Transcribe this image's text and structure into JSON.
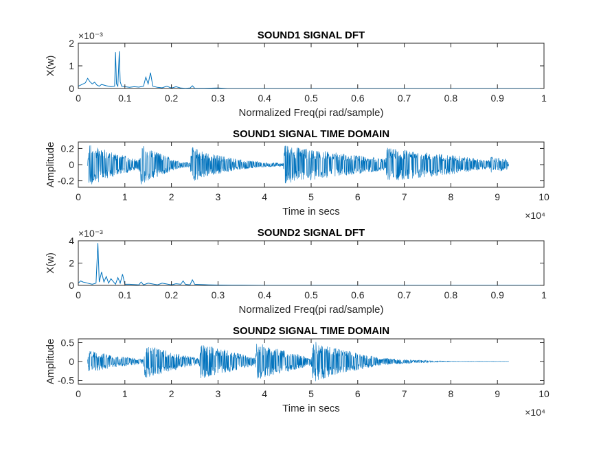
{
  "chart_data": [
    {
      "type": "line",
      "title": "SOUND1 SIGNAL DFT",
      "xlabel": "Normalized Freq(pi rad/sample)",
      "ylabel": "X(w)",
      "xlim": [
        0,
        1
      ],
      "ylim": [
        0,
        0.002
      ],
      "xticks": [
        0,
        0.1,
        0.2,
        0.3,
        0.4,
        0.5,
        0.6,
        0.7,
        0.8,
        0.9,
        1
      ],
      "xtick_labels": [
        "0",
        "0.1",
        "0.2",
        "0.3",
        "0.4",
        "0.5",
        "0.6",
        "0.7",
        "0.8",
        "0.9",
        "1"
      ],
      "yticks": [
        0,
        0.001,
        0.002
      ],
      "ytick_labels": [
        "0",
        "1",
        "2"
      ],
      "y_exponent_label": "×10⁻³",
      "grid": false,
      "color": "#0072BD",
      "series": [
        {
          "x": [
            0,
            0.01,
            0.015,
            0.02,
            0.025,
            0.03,
            0.035,
            0.04,
            0.045,
            0.05,
            0.06,
            0.07,
            0.078,
            0.08,
            0.082,
            0.085,
            0.088,
            0.09,
            0.093,
            0.1,
            0.11,
            0.12,
            0.13,
            0.14,
            0.145,
            0.15,
            0.155,
            0.16,
            0.17,
            0.18,
            0.19,
            0.2,
            0.21,
            0.22,
            0.23,
            0.24,
            0.245,
            0.25,
            0.27,
            0.3,
            0.32,
            0.35,
            0.4,
            0.45,
            0.5,
            0.6,
            0.7,
            0.8,
            0.9,
            1
          ],
          "y": [
            0.0001,
            0.0002,
            0.00025,
            0.00045,
            0.0003,
            0.0002,
            0.00028,
            0.00015,
            0.0001,
            0.00018,
            0.00012,
            8e-05,
            0.0001,
            0.0016,
            0.0002,
            0.0001,
            0.00165,
            0.0003,
            0.0001,
            8e-05,
            5e-05,
            8e-05,
            6e-05,
            0.0001,
            0.0005,
            0.0002,
            0.0007,
            0.0001,
            5e-05,
            3e-05,
            0.0001,
            2e-05,
            8e-05,
            2e-05,
            1e-05,
            2e-05,
            0.00012,
            1e-05,
            1e-05,
            2e-05,
            0,
            0,
            0,
            0,
            0,
            0,
            0,
            0,
            0,
            0
          ]
        }
      ]
    },
    {
      "type": "line",
      "title": "SOUND1 SIGNAL TIME DOMAIN",
      "xlabel": "Time in secs",
      "ylabel": "Amplitude",
      "xlim": [
        0,
        100000
      ],
      "ylim": [
        -0.28,
        0.28
      ],
      "xticks": [
        0,
        10000,
        20000,
        30000,
        40000,
        50000,
        60000,
        70000,
        80000,
        90000,
        100000
      ],
      "xtick_labels": [
        "0",
        "1",
        "2",
        "3",
        "4",
        "5",
        "6",
        "7",
        "8",
        "9",
        "10"
      ],
      "yticks": [
        -0.2,
        0,
        0.2
      ],
      "ytick_labels": [
        "-0.2",
        "0",
        "0.2"
      ],
      "x_exponent_label": "×10⁴",
      "grid": false,
      "color": "#0072BD",
      "envelope": {
        "x": [
          2000,
          2300,
          7000,
          13000,
          13500,
          17000,
          22000,
          24000,
          24300,
          28000,
          35000,
          40000,
          44000,
          44300,
          50000,
          58000,
          66000,
          66300,
          72000,
          82000,
          88000,
          88500,
          89000,
          92000,
          92500
        ],
        "upper": [
          0.02,
          0.26,
          0.16,
          0.06,
          0.25,
          0.15,
          0.04,
          0.03,
          0.22,
          0.14,
          0.06,
          0.03,
          0.02,
          0.24,
          0.19,
          0.13,
          0.07,
          0.21,
          0.17,
          0.11,
          0.05,
          0.1,
          0.09,
          0.07,
          0
        ]
      }
    },
    {
      "type": "line",
      "title": "SOUND2 SIGNAL DFT",
      "xlabel": "Normalized Freq(pi rad/sample)",
      "ylabel": "X(w)",
      "xlim": [
        0,
        1
      ],
      "ylim": [
        0,
        0.004
      ],
      "xticks": [
        0,
        0.1,
        0.2,
        0.3,
        0.4,
        0.5,
        0.6,
        0.7,
        0.8,
        0.9,
        1
      ],
      "xtick_labels": [
        "0",
        "0.1",
        "0.2",
        "0.3",
        "0.4",
        "0.5",
        "0.6",
        "0.7",
        "0.8",
        "0.9",
        "1"
      ],
      "yticks": [
        0,
        0.002,
        0.004
      ],
      "ytick_labels": [
        "0",
        "2",
        "4"
      ],
      "y_exponent_label": "×10⁻³",
      "grid": false,
      "color": "#0072BD",
      "series": [
        {
          "x": [
            0,
            0.005,
            0.01,
            0.015,
            0.02,
            0.03,
            0.038,
            0.042,
            0.045,
            0.05,
            0.055,
            0.06,
            0.065,
            0.07,
            0.08,
            0.085,
            0.09,
            0.095,
            0.1,
            0.11,
            0.13,
            0.135,
            0.14,
            0.15,
            0.17,
            0.18,
            0.2,
            0.21,
            0.22,
            0.225,
            0.23,
            0.24,
            0.245,
            0.25,
            0.28,
            0.3,
            0.33,
            0.35,
            0.4,
            0.5,
            0.6,
            0.7,
            0.8,
            0.9,
            1
          ],
          "y": [
            0.0002,
            0.0004,
            0.0003,
            0.00025,
            0.0002,
            0.0001,
            0.0002,
            0.0038,
            0.0003,
            0.0012,
            0.0003,
            0.0008,
            0.0002,
            0.0006,
            0.0001,
            0.0007,
            0.0002,
            0.001,
            0.0001,
            0.0001,
            5e-05,
            0.0003,
            5e-05,
            0.0002,
            5e-05,
            0.0002,
            5e-05,
            0.00015,
            0.0001,
            0.0004,
            0.0001,
            5e-05,
            0.0005,
            0.0001,
            5e-05,
            3e-05,
            2e-05,
            1e-05,
            0,
            0,
            0,
            0,
            0,
            0,
            0
          ]
        }
      ]
    },
    {
      "type": "line",
      "title": "SOUND2 SIGNAL TIME DOMAIN",
      "xlabel": "Time in secs",
      "ylabel": "Amplitude",
      "xlim": [
        0,
        100000
      ],
      "ylim": [
        -0.6,
        0.6
      ],
      "xticks": [
        0,
        10000,
        20000,
        30000,
        40000,
        50000,
        60000,
        70000,
        80000,
        90000,
        100000
      ],
      "xtick_labels": [
        "0",
        "1",
        "2",
        "3",
        "4",
        "5",
        "6",
        "7",
        "8",
        "9",
        "10"
      ],
      "yticks": [
        -0.5,
        0,
        0.5
      ],
      "ytick_labels": [
        "-0.5",
        "0",
        "0.5"
      ],
      "x_exponent_label": "×10⁴",
      "grid": false,
      "color": "#0072BD",
      "envelope": {
        "x": [
          2000,
          2300,
          8000,
          14000,
          14300,
          20000,
          26000,
          26300,
          32000,
          38000,
          38300,
          44000,
          50000,
          50300,
          57000,
          65000,
          72000,
          77000,
          80000,
          92500
        ],
        "upper": [
          0.05,
          0.3,
          0.15,
          0.06,
          0.45,
          0.25,
          0.08,
          0.47,
          0.3,
          0.1,
          0.5,
          0.3,
          0.1,
          0.55,
          0.3,
          0.1,
          0.04,
          0.02,
          0.005,
          0.003
        ]
      }
    }
  ]
}
